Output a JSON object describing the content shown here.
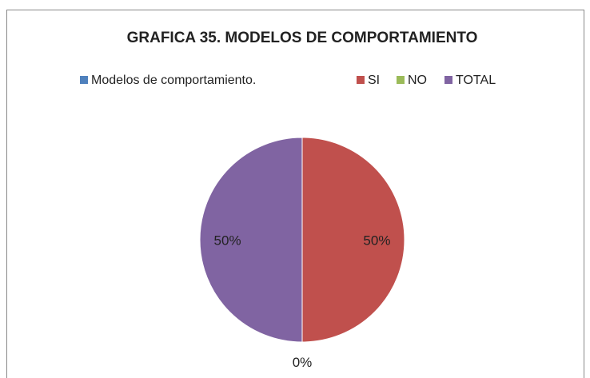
{
  "chart_data": {
    "type": "pie",
    "title": "GRAFICA 35. MODELOS DE COMPORTAMIENTO",
    "categories": [
      "Modelos de comportamiento.",
      "SI",
      "NO",
      "TOTAL"
    ],
    "values": [
      0,
      50,
      0,
      50
    ],
    "value_labels": [
      null,
      "50%",
      "0%",
      "50%"
    ],
    "colors": [
      "#4f81bd",
      "#c0504d",
      "#9bbb59",
      "#8064a2"
    ],
    "legend": "top"
  }
}
